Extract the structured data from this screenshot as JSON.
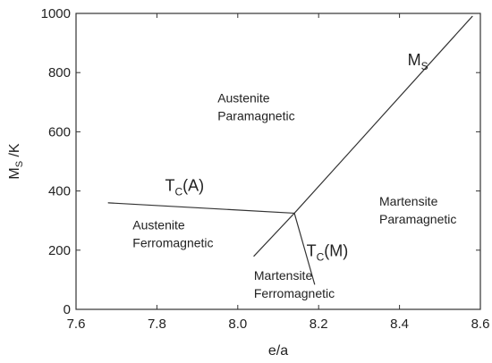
{
  "chart_data": {
    "type": "line",
    "xlabel": "e/a",
    "ylabel": {
      "main": "M",
      "sub": "S",
      "rest": " /K"
    },
    "xlim": [
      7.6,
      8.6
    ],
    "ylim": [
      0,
      1000
    ],
    "x_ticks": [
      "7.6",
      "7.8",
      "8.0",
      "8.2",
      "8.4",
      "8.6"
    ],
    "y_ticks": [
      "0",
      "200",
      "400",
      "600",
      "800",
      "1000"
    ],
    "grid": false,
    "series": [
      {
        "label": {
          "main": "M",
          "sub": "S",
          "rest": ""
        },
        "x": [
          8.04,
          8.14,
          8.58
        ],
        "y": [
          180,
          325,
          990
        ]
      },
      {
        "label": {
          "main": "T",
          "sub": "C",
          "rest": "(A)"
        },
        "x": [
          7.68,
          8.14
        ],
        "y": [
          360,
          325
        ]
      },
      {
        "label": {
          "main": "T",
          "sub": "C",
          "rest": "(M)"
        },
        "x": [
          8.14,
          8.19
        ],
        "y": [
          325,
          85
        ]
      }
    ],
    "regions": [
      {
        "lines": [
          "Austenite",
          "Paramagnetic"
        ],
        "x": 7.95,
        "y": 700
      },
      {
        "lines": [
          "Austenite",
          "Ferromagnetic"
        ],
        "x": 7.74,
        "y": 270
      },
      {
        "lines": [
          "Martensite",
          "Paramagnetic"
        ],
        "x": 8.35,
        "y": 350
      },
      {
        "lines": [
          "Martensite",
          "Ferromagnetic"
        ],
        "x": 8.04,
        "y": 100
      }
    ]
  }
}
